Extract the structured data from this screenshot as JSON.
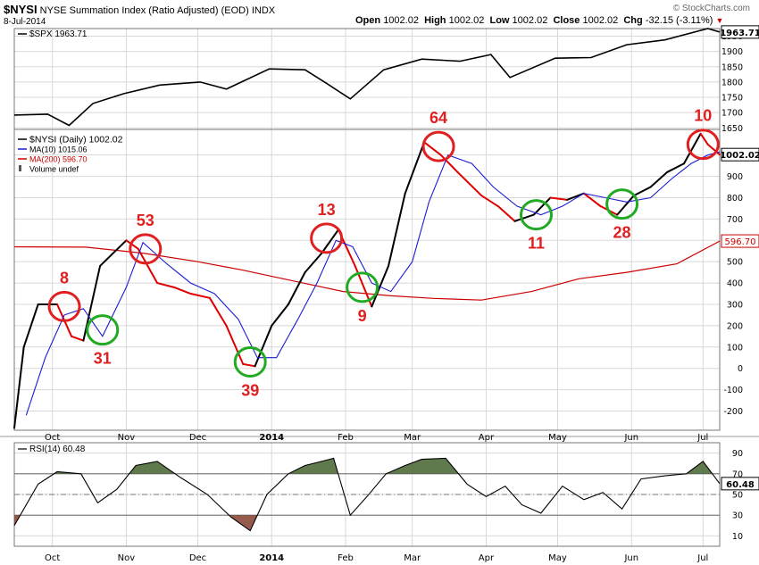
{
  "header": {
    "symbol": "$NYSI",
    "name": "NYSE Summation Index (Ratio Adjusted) (EOD)",
    "exchange": "INDX",
    "date": "8-Jul-2014",
    "brand": "© StockCharts.com",
    "ohlc": {
      "open_label": "Open",
      "open": "1002.02",
      "high_label": "High",
      "high": "1002.02",
      "low_label": "Low",
      "low": "1002.02",
      "close_label": "Close",
      "close": "1002.02",
      "chg_label": "Chg",
      "chg": "-32.15 (-3.11%)"
    }
  },
  "colors": {
    "price": "#000000",
    "ma10": "#1c1cd6",
    "ma200": "#cc0000",
    "down_segment": "#e00000",
    "annotation_red": "#e02020",
    "annotation_green": "#22aa22",
    "rsi_fill": "#4f6b3a",
    "rsi_fill_low": "#8a4a3a",
    "grid": "#d8d8d8"
  },
  "x_axis_labels": [
    "Oct",
    "Nov",
    "Dec",
    "2014",
    "Feb",
    "Mar",
    "Apr",
    "May",
    "Jun",
    "Jul"
  ],
  "chart_data": [
    {
      "panel": "spx",
      "type": "line",
      "title": "$SPX 1963.71",
      "last_value": "1963.71",
      "y_ticks": [
        1650,
        1700,
        1750,
        1800,
        1850,
        1900,
        1950
      ],
      "ylim": [
        1645,
        1975
      ],
      "x": [
        "Sep 15",
        "Sep 29",
        "Oct 8",
        "Oct 18",
        "Oct 31",
        "Nov 15",
        "Dec 2",
        "Dec 13",
        "Dec 31",
        "Jan 15",
        "Jan 24",
        "Feb 3",
        "Feb 17",
        "Mar 5",
        "Mar 21",
        "Apr 3",
        "Apr 11",
        "Apr 30",
        "May 15",
        "May 30",
        "Jun 15",
        "Jul 3",
        "Jul 8"
      ],
      "values": [
        1692,
        1695,
        1658,
        1730,
        1762,
        1790,
        1800,
        1777,
        1843,
        1840,
        1796,
        1745,
        1840,
        1875,
        1868,
        1890,
        1815,
        1878,
        1880,
        1922,
        1938,
        1975,
        1963.71
      ]
    },
    {
      "panel": "nysi",
      "type": "line",
      "title": "$NYSI (Daily) 1002.02",
      "last_value": "1002.02",
      "legend": [
        "$NYSI (Daily) 1002.02",
        "MA(10) 1015.06",
        "MA(200) 596.70",
        "Volume undef"
      ],
      "y_ticks": [
        -200,
        -100,
        0,
        100,
        200,
        300,
        400,
        500,
        600,
        700,
        800,
        900,
        1000
      ],
      "ylim": [
        -290,
        1120
      ],
      "series": [
        {
          "name": "$NYSI (Daily) 1002.02",
          "x": [
            "Sep 15",
            "Sep 19",
            "Sep 25",
            "Oct 3",
            "Oct 9",
            "Oct 14",
            "Oct 21",
            "Nov 1",
            "Nov 6",
            "Nov 14",
            "Nov 21",
            "Nov 28",
            "Dec 6",
            "Dec 13",
            "Dec 20",
            "Dec 25",
            "Jan 1",
            "Jan 8",
            "Jan 15",
            "Jan 22",
            "Jan 29",
            "Feb 5",
            "Feb 12",
            "Feb 19",
            "Feb 26",
            "Mar 6",
            "Mar 13",
            "Mar 20",
            "Mar 30",
            "Apr 6",
            "Apr 13",
            "Apr 21",
            "Apr 28",
            "May 5",
            "May 12",
            "May 19",
            "May 26",
            "Jun 2",
            "Jun 9",
            "Jun 16",
            "Jun 23",
            "Jun 30",
            "Jul 3",
            "Jul 8"
          ],
          "values": [
            -280,
            100,
            300,
            300,
            150,
            130,
            480,
            600,
            560,
            400,
            380,
            350,
            330,
            200,
            20,
            10,
            200,
            300,
            450,
            540,
            650,
            480,
            290,
            480,
            820,
            1060,
            1000,
            920,
            810,
            760,
            690,
            720,
            800,
            790,
            820,
            760,
            720,
            810,
            850,
            920,
            960,
            1100,
            1050,
            1002.02
          ]
        },
        {
          "name": "MA(10) 1015.06",
          "x": [
            "Sep 20",
            "Sep 28",
            "Oct 6",
            "Oct 14",
            "Oct 22",
            "Nov 1",
            "Nov 8",
            "Nov 18",
            "Nov 28",
            "Dec 8",
            "Dec 18",
            "Dec 26",
            "Jan 3",
            "Jan 12",
            "Jan 20",
            "Jan 28",
            "Feb 4",
            "Feb 12",
            "Feb 20",
            "Mar 1",
            "Mar 8",
            "Mar 16",
            "Mar 26",
            "Apr 4",
            "Apr 14",
            "Apr 24",
            "May 3",
            "May 12",
            "May 21",
            "May 30",
            "Jun 9",
            "Jun 18",
            "Jun 26",
            "Jul 3",
            "Jul 8"
          ],
          "values": [
            -220,
            50,
            250,
            280,
            150,
            380,
            590,
            490,
            400,
            350,
            230,
            50,
            50,
            230,
            400,
            600,
            570,
            400,
            360,
            500,
            780,
            1000,
            960,
            850,
            760,
            720,
            760,
            820,
            800,
            780,
            800,
            890,
            960,
            1000,
            1015.06
          ]
        },
        {
          "name": "MA(200) 596.70",
          "x": [
            "Sep 15",
            "Oct 15",
            "Nov 8",
            "Dec 1",
            "Dec 20",
            "Jan 10",
            "Jan 31",
            "Feb 20",
            "Mar 10",
            "Mar 30",
            "Apr 20",
            "May 10",
            "May 30",
            "Jun 20",
            "Jul 8"
          ],
          "values": [
            570,
            568,
            540,
            500,
            460,
            410,
            360,
            340,
            328,
            320,
            360,
            420,
            450,
            490,
            596.7
          ]
        }
      ],
      "annotations": [
        {
          "label": "8",
          "x": "Oct 6",
          "y": 290,
          "circle": "red"
        },
        {
          "label": "31",
          "x": "Oct 22",
          "y": 180,
          "circle": "green"
        },
        {
          "label": "53",
          "x": "Nov 9",
          "y": 560,
          "circle": "red"
        },
        {
          "label": "39",
          "x": "Dec 23",
          "y": 30,
          "circle": "green"
        },
        {
          "label": "13",
          "x": "Jan 24",
          "y": 610,
          "circle": "red"
        },
        {
          "label": "9",
          "x": "Feb 8",
          "y": 380,
          "circle": "green"
        },
        {
          "label": "64",
          "x": "Mar 12",
          "y": 1040,
          "circle": "red"
        },
        {
          "label": "11",
          "x": "Apr 22",
          "y": 720,
          "circle": "green"
        },
        {
          "label": "28",
          "x": "May 28",
          "y": 770,
          "circle": "green"
        },
        {
          "label": "10",
          "x": "Jul 1",
          "y": 1050,
          "circle": "red"
        }
      ]
    },
    {
      "panel": "rsi",
      "type": "line",
      "title": "RSI(14) 60.48",
      "last_value": "60.48",
      "y_ticks": [
        10,
        30,
        50,
        70,
        90
      ],
      "ylim": [
        0,
        100
      ],
      "x": [
        "Sep 15",
        "Sep 25",
        "Oct 3",
        "Oct 13",
        "Oct 20",
        "Oct 28",
        "Nov 5",
        "Nov 14",
        "Nov 24",
        "Dec 5",
        "Dec 15",
        "Dec 23",
        "Dec 30",
        "Jan 8",
        "Jan 15",
        "Jan 22",
        "Jan 27",
        "Feb 3",
        "Feb 10",
        "Feb 18",
        "Feb 26",
        "Mar 5",
        "Mar 15",
        "Mar 24",
        "Apr 1",
        "Apr 9",
        "Apr 16",
        "Apr 24",
        "May 3",
        "May 12",
        "May 20",
        "May 28",
        "Jun 5",
        "Jun 15",
        "Jun 24",
        "Jul 1",
        "Jul 8"
      ],
      "values": [
        20,
        60,
        72,
        70,
        42,
        55,
        78,
        82,
        66,
        50,
        28,
        15,
        50,
        70,
        78,
        82,
        85,
        30,
        48,
        70,
        78,
        84,
        85,
        60,
        48,
        58,
        40,
        32,
        58,
        45,
        52,
        36,
        65,
        68,
        70,
        82,
        60.48
      ]
    }
  ]
}
